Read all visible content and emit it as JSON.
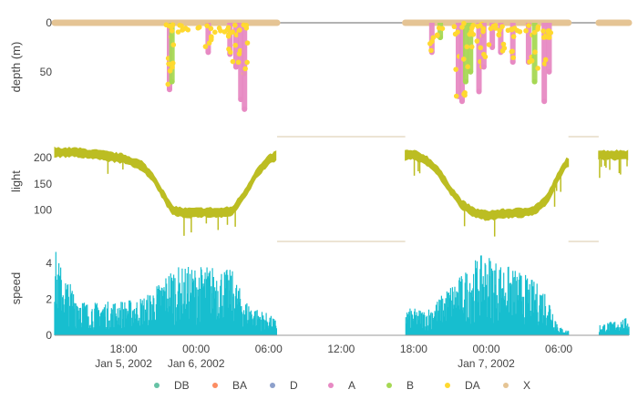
{
  "chart_data": {
    "type": "multi-panel-timeseries",
    "x_axis": {
      "ticks": [
        {
          "t": 18,
          "label": "18:00",
          "date": "Jan 5, 2002"
        },
        {
          "t": 24,
          "label": "00:00",
          "date": "Jan 6, 2002"
        },
        {
          "t": 30,
          "label": "06:00",
          "date": ""
        },
        {
          "t": 36,
          "label": "12:00",
          "date": ""
        },
        {
          "t": 42,
          "label": "18:00",
          "date": ""
        },
        {
          "t": 48,
          "label": "00:00",
          "date": "Jan 7, 2002"
        },
        {
          "t": 54,
          "label": "06:00",
          "date": ""
        }
      ],
      "range_hours": [
        12.3,
        59.8
      ],
      "data_gaps_hours": [
        [
          30.7,
          41.3
        ],
        [
          54.8,
          57.3
        ]
      ]
    },
    "panels": [
      {
        "id": "depth",
        "type": "scatter",
        "ylabel": "depth (m)",
        "yrange": [
          0,
          90
        ],
        "reversed": true,
        "ticks": [
          {
            "v": 0,
            "label": "0"
          },
          {
            "v": 50,
            "label": "50"
          }
        ],
        "dives": [
          {
            "t": 21.8,
            "depth": 68,
            "behav": "A"
          },
          {
            "t": 22.0,
            "depth": 60,
            "behav": "B"
          },
          {
            "t": 25.0,
            "depth": 30,
            "behav": "A"
          },
          {
            "t": 26.8,
            "depth": 32,
            "behav": "A"
          },
          {
            "t": 27.3,
            "depth": 45,
            "behav": "A"
          },
          {
            "t": 27.7,
            "depth": 78,
            "behav": "A"
          },
          {
            "t": 28.0,
            "depth": 88,
            "behav": "A"
          },
          {
            "t": 43.5,
            "depth": 30,
            "behav": "A"
          },
          {
            "t": 44.2,
            "depth": 15,
            "behav": "B"
          },
          {
            "t": 45.7,
            "depth": 75,
            "behav": "A"
          },
          {
            "t": 46.0,
            "depth": 80,
            "behav": "A"
          },
          {
            "t": 46.3,
            "depth": 60,
            "behav": "B"
          },
          {
            "t": 46.7,
            "depth": 50,
            "behav": "B"
          },
          {
            "t": 47.4,
            "depth": 70,
            "behav": "A"
          },
          {
            "t": 47.8,
            "depth": 45,
            "behav": "A"
          },
          {
            "t": 48.5,
            "depth": 25,
            "behav": "A"
          },
          {
            "t": 49.2,
            "depth": 30,
            "behav": "A"
          },
          {
            "t": 50.2,
            "depth": 40,
            "behav": "A"
          },
          {
            "t": 51.5,
            "depth": 40,
            "behav": "A"
          },
          {
            "t": 52.0,
            "depth": 60,
            "behav": "B"
          },
          {
            "t": 52.8,
            "depth": 80,
            "behav": "A"
          },
          {
            "t": 53.2,
            "depth": 50,
            "behav": "A"
          }
        ]
      },
      {
        "id": "light",
        "type": "line",
        "ylabel": "light",
        "yrange": [
          70,
          240
        ],
        "ticks": [
          {
            "v": 100,
            "label": "100"
          },
          {
            "v": 150,
            "label": "150"
          },
          {
            "v": 200,
            "label": "200"
          }
        ],
        "color": "#bcbd22",
        "points": [
          [
            12.3,
            210
          ],
          [
            14,
            210
          ],
          [
            16,
            205
          ],
          [
            18,
            198
          ],
          [
            19.5,
            185
          ],
          [
            20.5,
            160
          ],
          [
            21.5,
            120
          ],
          [
            22,
            100
          ],
          [
            23,
            95
          ],
          [
            24,
            95
          ],
          [
            25,
            96
          ],
          [
            26,
            95
          ],
          [
            27,
            98
          ],
          [
            28,
            130
          ],
          [
            29,
            170
          ],
          [
            30,
            195
          ],
          [
            30.7,
            205
          ],
          [
            41.3,
            205
          ],
          [
            42,
            205
          ],
          [
            43,
            196
          ],
          [
            44,
            175
          ],
          [
            45,
            140
          ],
          [
            46,
            110
          ],
          [
            47,
            95
          ],
          [
            48,
            90
          ],
          [
            49,
            92
          ],
          [
            50,
            94
          ],
          [
            51,
            95
          ],
          [
            52,
            100
          ],
          [
            53,
            120
          ],
          [
            54,
            165
          ],
          [
            54.6,
            190
          ],
          [
            57.3,
            205
          ],
          [
            59.8,
            205
          ]
        ],
        "band": 12
      },
      {
        "id": "speed",
        "type": "line",
        "ylabel": "speed",
        "yrange": [
          0,
          5.2
        ],
        "ticks": [
          {
            "v": 0,
            "label": "0"
          },
          {
            "v": 2,
            "label": "2"
          },
          {
            "v": 4,
            "label": "4"
          }
        ],
        "color": "#17becf",
        "envelope": [
          [
            12.3,
            4.9
          ],
          [
            13,
            3.5
          ],
          [
            14,
            2.5
          ],
          [
            15,
            1.8
          ],
          [
            17,
            1.9
          ],
          [
            19,
            2.0
          ],
          [
            20,
            2.3
          ],
          [
            21,
            3.0
          ],
          [
            22,
            3.8
          ],
          [
            23,
            3.8
          ],
          [
            25,
            3.9
          ],
          [
            26,
            3.8
          ],
          [
            27,
            3.6
          ],
          [
            28,
            2.0
          ],
          [
            29,
            1.5
          ],
          [
            30,
            1.2
          ],
          [
            30.7,
            0.8
          ],
          [
            41.3,
            1.5
          ],
          [
            42,
            1.5
          ],
          [
            43,
            1.4
          ],
          [
            44,
            2.0
          ],
          [
            45,
            2.8
          ],
          [
            46,
            3.4
          ],
          [
            47,
            4.2
          ],
          [
            48,
            4.6
          ],
          [
            49,
            4.1
          ],
          [
            50,
            3.8
          ],
          [
            51,
            3.5
          ],
          [
            52,
            3.0
          ],
          [
            53,
            2.5
          ],
          [
            54,
            0.5
          ],
          [
            54.6,
            0.3
          ],
          [
            57.3,
            0.6
          ],
          [
            59.8,
            1.0
          ]
        ]
      }
    ],
    "legend": {
      "position": "bottom",
      "items": [
        {
          "name": "DB",
          "color": "#66c2a5"
        },
        {
          "name": "BA",
          "color": "#fc8d62"
        },
        {
          "name": "D",
          "color": "#8da0cb"
        },
        {
          "name": "A",
          "color": "#e78ac3"
        },
        {
          "name": "B",
          "color": "#a6d854"
        },
        {
          "name": "DA",
          "color": "#ffd92f"
        },
        {
          "name": "X",
          "color": "#e5c494"
        }
      ]
    }
  }
}
